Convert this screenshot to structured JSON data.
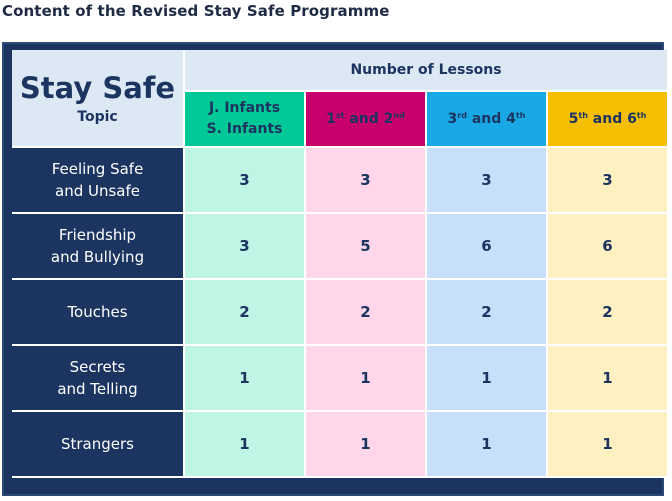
{
  "caption": "Content of the Revised Stay Safe Programme",
  "corner": {
    "title": "Stay Safe",
    "subtitle": "Topic"
  },
  "group_header": "Number of Lessons",
  "bands": [
    {
      "line1": "J. Infants",
      "line2": "S. Infants"
    },
    {
      "a_num": "1",
      "a_sup": "st",
      "and": " and ",
      "b_num": "2",
      "b_sup": "nd"
    },
    {
      "a_num": "3",
      "a_sup": "rd",
      "and": " and ",
      "b_num": "4",
      "b_sup": "th"
    },
    {
      "a_num": "5",
      "a_sup": "th",
      "and": " and ",
      "b_num": "6",
      "b_sup": "th"
    }
  ],
  "rows": [
    {
      "topic1": "Feeling Safe",
      "topic2": "and Unsafe",
      "values": [
        "3",
        "3",
        "3",
        "3"
      ]
    },
    {
      "topic1": "Friendship",
      "topic2": "and Bullying",
      "values": [
        "3",
        "5",
        "6",
        "6"
      ]
    },
    {
      "topic1": "Touches",
      "topic2": "",
      "values": [
        "2",
        "2",
        "2",
        "2"
      ]
    },
    {
      "topic1": "Secrets",
      "topic2": "and Telling",
      "values": [
        "1",
        "1",
        "1",
        "1"
      ]
    },
    {
      "topic1": "Strangers",
      "topic2": "",
      "values": [
        "1",
        "1",
        "1",
        "1"
      ]
    }
  ],
  "colors": {
    "frame": "#1c3560",
    "band_infants": "#00c896",
    "band_1_2": "#c8006e",
    "band_3_4": "#19a8e6",
    "band_5_6": "#f5be00"
  }
}
